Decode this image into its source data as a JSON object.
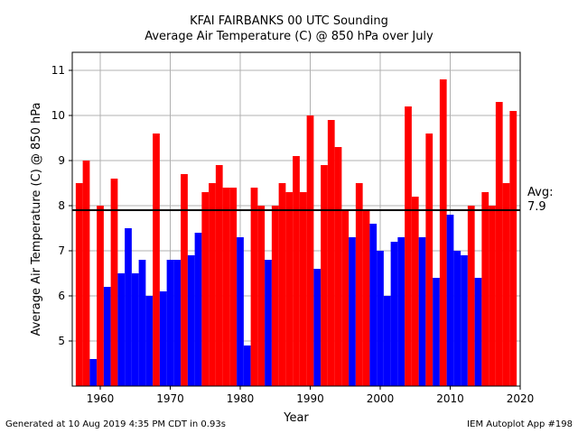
{
  "header": {
    "title": "KFAI FAIRBANKS 00 UTC Sounding",
    "subtitle": "Average Air Temperature (C) @ 850 hPa over July"
  },
  "footer": {
    "generated": "Generated at 10 Aug 2019 4:35 PM CDT in 0.93s",
    "app": "IEM Autoplot App #198"
  },
  "colors": {
    "above": "#ff0000",
    "below": "#0000ff",
    "avg_line": "#000000",
    "grid": "#b0b0b0"
  },
  "chart_data": {
    "type": "bar",
    "title": "KFAI FAIRBANKS 00 UTC Sounding",
    "subtitle": "Average Air Temperature (C) @ 850 hPa over July",
    "xlabel": "Year",
    "ylabel": "Average Air Temperature (C) @ 850 hPa",
    "xlim": [
      1956,
      2020
    ],
    "ylim": [
      4.0,
      11.4
    ],
    "xticks": [
      1960,
      1970,
      1980,
      1990,
      2000,
      2010,
      2020
    ],
    "yticks": [
      5,
      6,
      7,
      8,
      9,
      10,
      11
    ],
    "grid": true,
    "average": {
      "value": 7.9,
      "label_line1": "Avg:",
      "label_line2": "7.9"
    },
    "years": [
      1957,
      1958,
      1959,
      1960,
      1961,
      1962,
      1963,
      1964,
      1965,
      1966,
      1967,
      1968,
      1969,
      1970,
      1971,
      1972,
      1973,
      1974,
      1975,
      1976,
      1977,
      1978,
      1979,
      1980,
      1981,
      1982,
      1983,
      1984,
      1985,
      1986,
      1987,
      1988,
      1989,
      1990,
      1991,
      1992,
      1993,
      1994,
      1995,
      1996,
      1997,
      1998,
      1999,
      2000,
      2001,
      2002,
      2003,
      2004,
      2005,
      2006,
      2007,
      2008,
      2009,
      2010,
      2011,
      2012,
      2013,
      2014,
      2015,
      2016,
      2017,
      2018,
      2019
    ],
    "values": [
      8.5,
      9.0,
      4.6,
      8.0,
      6.2,
      8.6,
      6.5,
      7.5,
      6.5,
      6.8,
      6.0,
      9.6,
      6.1,
      6.8,
      6.8,
      8.7,
      6.9,
      7.4,
      8.3,
      8.5,
      8.9,
      8.4,
      8.4,
      7.3,
      4.9,
      8.4,
      8.0,
      6.8,
      8.0,
      8.5,
      8.3,
      9.1,
      8.3,
      10.0,
      6.6,
      8.9,
      9.9,
      9.3,
      7.9,
      7.3,
      8.5,
      7.9,
      7.6,
      7.0,
      6.0,
      7.2,
      7.3,
      10.2,
      8.2,
      7.3,
      9.6,
      6.4,
      10.8,
      7.8,
      7.0,
      6.9,
      8.0,
      6.4,
      8.3,
      8.0,
      10.3,
      8.5,
      10.1
    ]
  }
}
